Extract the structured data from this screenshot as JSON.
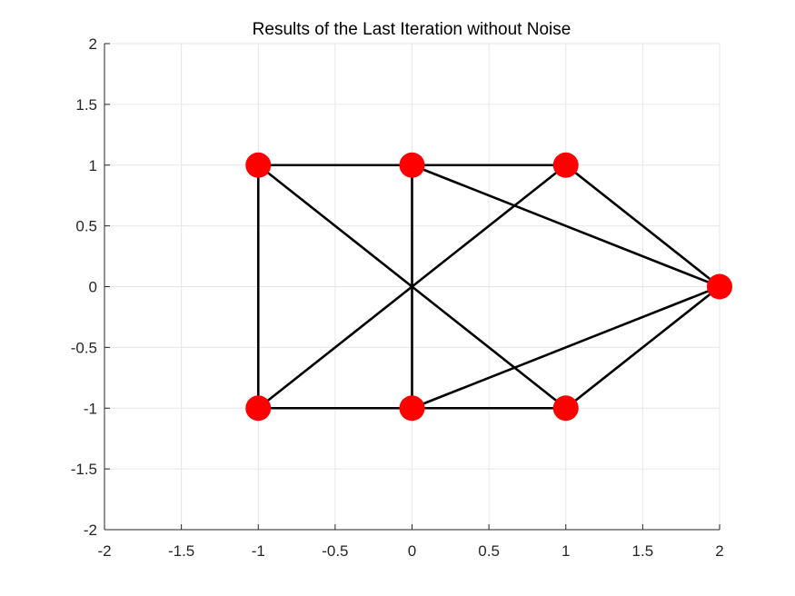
{
  "chart_data": {
    "type": "scatter",
    "title": "Results of the Last Iteration without Noise",
    "xlabel": "",
    "ylabel": "",
    "xlim": [
      -2,
      2
    ],
    "ylim": [
      -2,
      2
    ],
    "x_ticks": [
      "-2",
      "-1.5",
      "-1",
      "-0.5",
      "0",
      "0.5",
      "1",
      "1.5",
      "2"
    ],
    "y_ticks": [
      "2",
      "1.5",
      "1",
      "0.5",
      "0",
      "-0.5",
      "-1",
      "-1.5",
      "-2"
    ],
    "x_tick_values": [
      -2,
      -1.5,
      -1,
      -0.5,
      0,
      0.5,
      1,
      1.5,
      2
    ],
    "y_tick_values": [
      2,
      1.5,
      1,
      0.5,
      0,
      -0.5,
      -1,
      -1.5,
      -2
    ],
    "grid": true,
    "nodes": [
      {
        "x": -1,
        "y": 1
      },
      {
        "x": 0,
        "y": 1
      },
      {
        "x": 1,
        "y": 1
      },
      {
        "x": 2,
        "y": 0
      },
      {
        "x": -1,
        "y": -1
      },
      {
        "x": 0,
        "y": -1
      },
      {
        "x": 1,
        "y": -1
      }
    ],
    "edges": [
      [
        0,
        1
      ],
      [
        1,
        2
      ],
      [
        0,
        4
      ],
      [
        1,
        5
      ],
      [
        4,
        5
      ],
      [
        5,
        6
      ],
      [
        0,
        6
      ],
      [
        4,
        2
      ],
      [
        1,
        3
      ],
      [
        2,
        3
      ],
      [
        5,
        3
      ],
      [
        6,
        3
      ]
    ],
    "node_color": "#ff0000",
    "edge_color": "#000000"
  }
}
